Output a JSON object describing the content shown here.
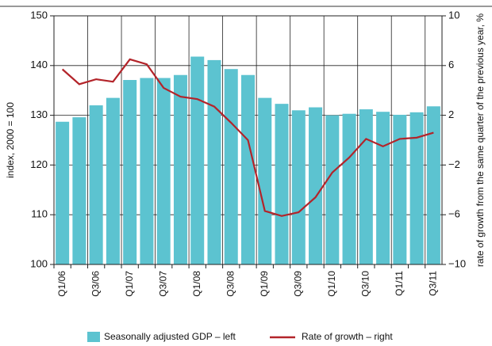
{
  "chart_data": {
    "type": "bar",
    "categories": [
      "Q1/06",
      null,
      "Q3/06",
      null,
      "Q1/07",
      null,
      "Q3/07",
      null,
      "Q1/08",
      null,
      "Q3/08",
      null,
      "Q1/09",
      null,
      "Q3/09",
      null,
      "Q1/10",
      null,
      "Q3/10",
      null,
      "Q1/11",
      null,
      "Q3/11"
    ],
    "series": [
      {
        "name": "Seasonally adjusted GDP – left",
        "type": "bar",
        "color": "#5cc3d0",
        "values": [
          128.7,
          129.6,
          132,
          133.5,
          137.1,
          137.5,
          137.5,
          138.1,
          141.8,
          141.1,
          139.3,
          138.1,
          133.5,
          132.3,
          131,
          131.6,
          130,
          130.3,
          131.2,
          130.7,
          130.1,
          130.6,
          131.8
        ]
      },
      {
        "name": "Rate of growth – right",
        "type": "line",
        "axis": "y2",
        "color": "#b3242a",
        "values": [
          5.7,
          4.5,
          4.9,
          4.7,
          6.5,
          6.1,
          4.2,
          3.5,
          3.3,
          2.7,
          1.4,
          0,
          -5.7,
          -6.1,
          -5.8,
          -4.6,
          -2.6,
          -1.4,
          0.1,
          -0.5,
          0.1,
          0.2,
          0.6
        ]
      }
    ],
    "ylabel": "index, 2000 = 100",
    "y2label": "rate of growth from the same quarter of the previous year, %",
    "ylim": [
      100,
      150
    ],
    "yticks": [
      100,
      110,
      120,
      130,
      140,
      150
    ],
    "y2lim": [
      -10,
      10
    ],
    "y2ticks": [
      {
        "value": -10,
        "label": "−10"
      },
      {
        "value": -6,
        "label": "−6"
      },
      {
        "value": -2,
        "label": "−2"
      },
      2,
      6,
      10
    ],
    "grid": true
  }
}
